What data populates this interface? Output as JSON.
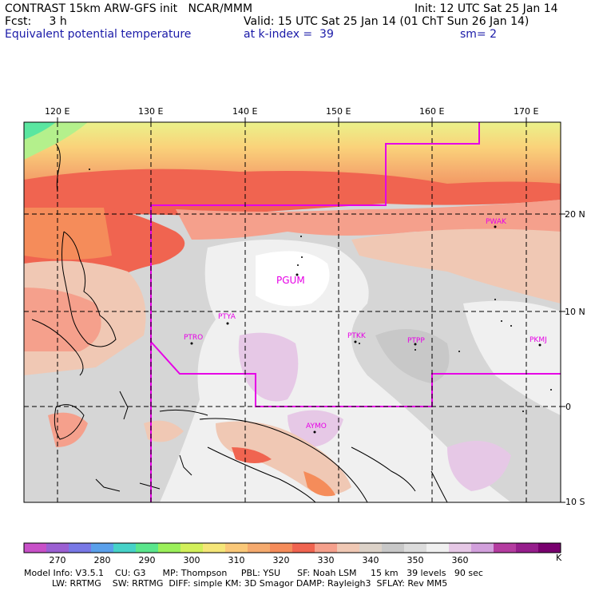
{
  "header": {
    "line1_left": "CONTRAST 15km ARW-GFS init   NCAR/MMM",
    "line1_right": "Init: 12 UTC Sat 25 Jan 14",
    "line2_left": "Fcst:     3 h",
    "line2_right": "Valid: 15 UTC Sat 25 Jan 14 (01 ChT Sun 26 Jan 14)",
    "line3_left": "Equivalent potential temperature",
    "line3_mid": "at k-index =  39",
    "line3_right": "sm= 2"
  },
  "map": {
    "lon_labels": [
      "120 E",
      "130 E",
      "140 E",
      "150 E",
      "160 E",
      "170 E"
    ],
    "lat_labels": [
      "20 N",
      "10 N",
      "0",
      "10 S"
    ],
    "stations": [
      "PWAK",
      "PGUM",
      "PTYA",
      "PTRO",
      "PTKK",
      "PTPP",
      "PKMJ",
      "AYMO"
    ],
    "colors": {
      "boundary": "#e600e6",
      "station": "#e600e6",
      "grid": "#000000"
    }
  },
  "legend": {
    "tick_labels": [
      "270",
      "280",
      "290",
      "300",
      "310",
      "320",
      "330",
      "340",
      "350",
      "360"
    ],
    "unit": "K",
    "colors": [
      "#c850c8",
      "#9b5fd2",
      "#7878e6",
      "#5aa0eb",
      "#46d2c8",
      "#5ae68c",
      "#9bf05a",
      "#d2f05a",
      "#f5e678",
      "#fac878",
      "#f5aa6e",
      "#f58c5a",
      "#f06450",
      "#f5a08c",
      "#f0c8b4",
      "#dcd2c8",
      "#c8c8c8",
      "#dcdcdc",
      "#f0f0f0",
      "#e6c8e6",
      "#d2a0dc",
      "#b43ca0",
      "#961e8c",
      "#78006e"
    ]
  },
  "footer": {
    "line1": "Model Info: V3.5.1    CU: G3      MP: Thompson     PBL: YSU      SF: Noah LSM     15 km   39 levels   90 sec",
    "line2": "          LW: RRTMG    SW: RRTMG  DIFF: simple KM: 3D Smagor DAMP: Rayleigh3  SFLAY: Rev MM5"
  }
}
